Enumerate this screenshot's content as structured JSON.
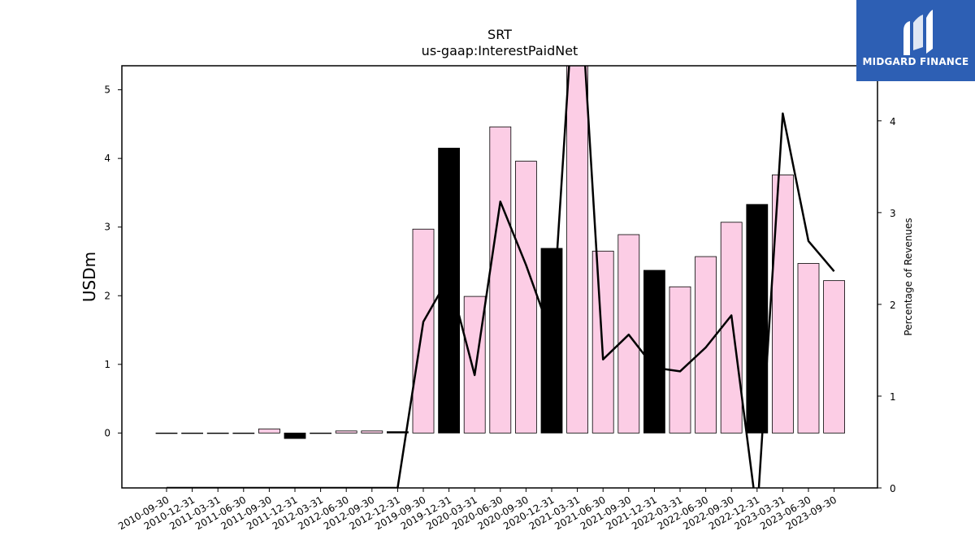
{
  "chart_data": {
    "type": "bar",
    "title": "SRT",
    "subtitle": "us-gaap:InterestPaidNet",
    "ylabel": "USDm",
    "y2label": "Percentage of Revenues",
    "categories": [
      "2010-09-30",
      "2010-12-31",
      "2011-03-31",
      "2011-06-30",
      "2011-09-30",
      "2011-12-31",
      "2012-03-31",
      "2012-06-30",
      "2012-09-30",
      "2012-12-31",
      "2019-09-30",
      "2019-12-31",
      "2020-03-31",
      "2020-06-30",
      "2020-09-30",
      "2020-12-31",
      "2021-03-31",
      "2021-06-30",
      "2021-09-30",
      "2021-12-31",
      "2022-03-31",
      "2022-06-30",
      "2022-09-30",
      "2022-12-31",
      "2023-03-31",
      "2023-06-30",
      "2023-09-30"
    ],
    "series": [
      {
        "type": "bar",
        "values": [
          0.0,
          0.0,
          0.0,
          0.0,
          0.06,
          -0.08,
          0.0,
          0.03,
          0.03,
          0.02,
          2.97,
          4.15,
          1.99,
          4.46,
          3.96,
          2.69,
          5.4,
          2.65,
          2.89,
          2.37,
          2.13,
          2.57,
          3.07,
          3.33,
          3.76,
          2.47,
          2.22
        ],
        "colors": [
          "#fccde5",
          "#fccde5",
          "#fccde5",
          "#fccde5",
          "#fccde5",
          "#000000",
          "#fccde5",
          "#fccde5",
          "#fccde5",
          "#000000",
          "#fccde5",
          "#000000",
          "#fccde5",
          "#fccde5",
          "#fccde5",
          "#000000",
          "#fccde5",
          "#fccde5",
          "#fccde5",
          "#000000",
          "#fccde5",
          "#fccde5",
          "#fccde5",
          "#000000",
          "#fccde5",
          "#fccde5",
          "#fccde5"
        ]
      },
      {
        "type": "line",
        "axis": "right",
        "values": [
          0,
          0,
          0,
          0,
          0,
          0,
          0,
          0,
          0,
          0,
          1.81,
          2.3,
          1.23,
          3.12,
          2.43,
          1.65,
          6.0,
          1.4,
          1.67,
          1.31,
          1.27,
          1.53,
          1.88,
          -0.3,
          4.08,
          2.69,
          2.36
        ]
      }
    ],
    "ylim": [
      -0.8,
      5.35
    ],
    "y2lim": [
      0,
      4.6
    ],
    "yticks": [
      "0",
      "1",
      "2",
      "3",
      "4",
      "5"
    ],
    "y2ticks": [
      "0",
      "1",
      "2",
      "3",
      "4"
    ],
    "grid": false,
    "legend": "none",
    "bar_color": "#fccde5",
    "highlight_color": "#000000",
    "line_color": "#000000"
  },
  "logo": {
    "text": "MIDGARD FINANCE",
    "color": "#2d5fb4"
  }
}
